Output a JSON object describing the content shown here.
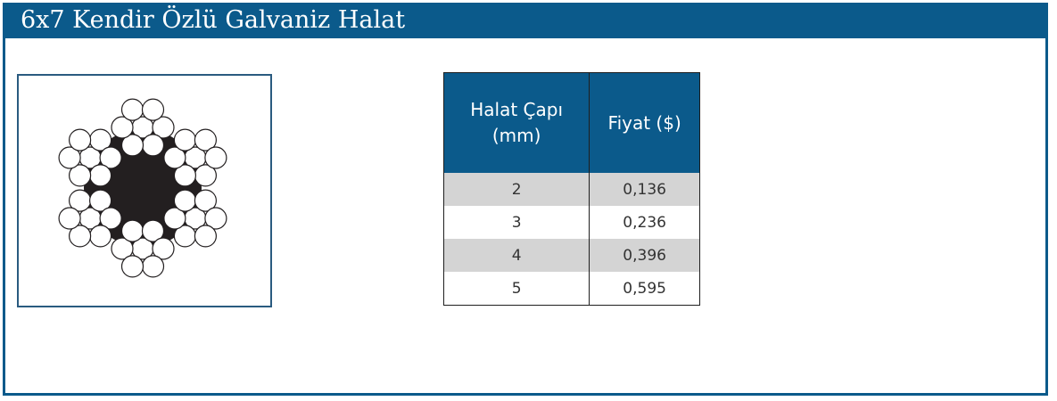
{
  "header": {
    "title": "6x7 Kendir Özlü Galvaniz Halat"
  },
  "figure": {
    "name": "6x7 rope cross-section",
    "colors": {
      "core": "#231f20",
      "wire_fill": "#ffffff",
      "wire_stroke": "#231f20",
      "frame": "#2a5b80"
    }
  },
  "table": {
    "headers": [
      "Halat Çapı (mm)",
      "Fiyat ($)"
    ],
    "rows": [
      {
        "diameter": "2",
        "price": "0,136"
      },
      {
        "diameter": "3",
        "price": "0,236"
      },
      {
        "diameter": "4",
        "price": "0,396"
      },
      {
        "diameter": "5",
        "price": "0,595"
      }
    ]
  },
  "colors": {
    "accent": "#0b5a8b",
    "row_shade": "#d4d4d4",
    "text": "#333333"
  }
}
